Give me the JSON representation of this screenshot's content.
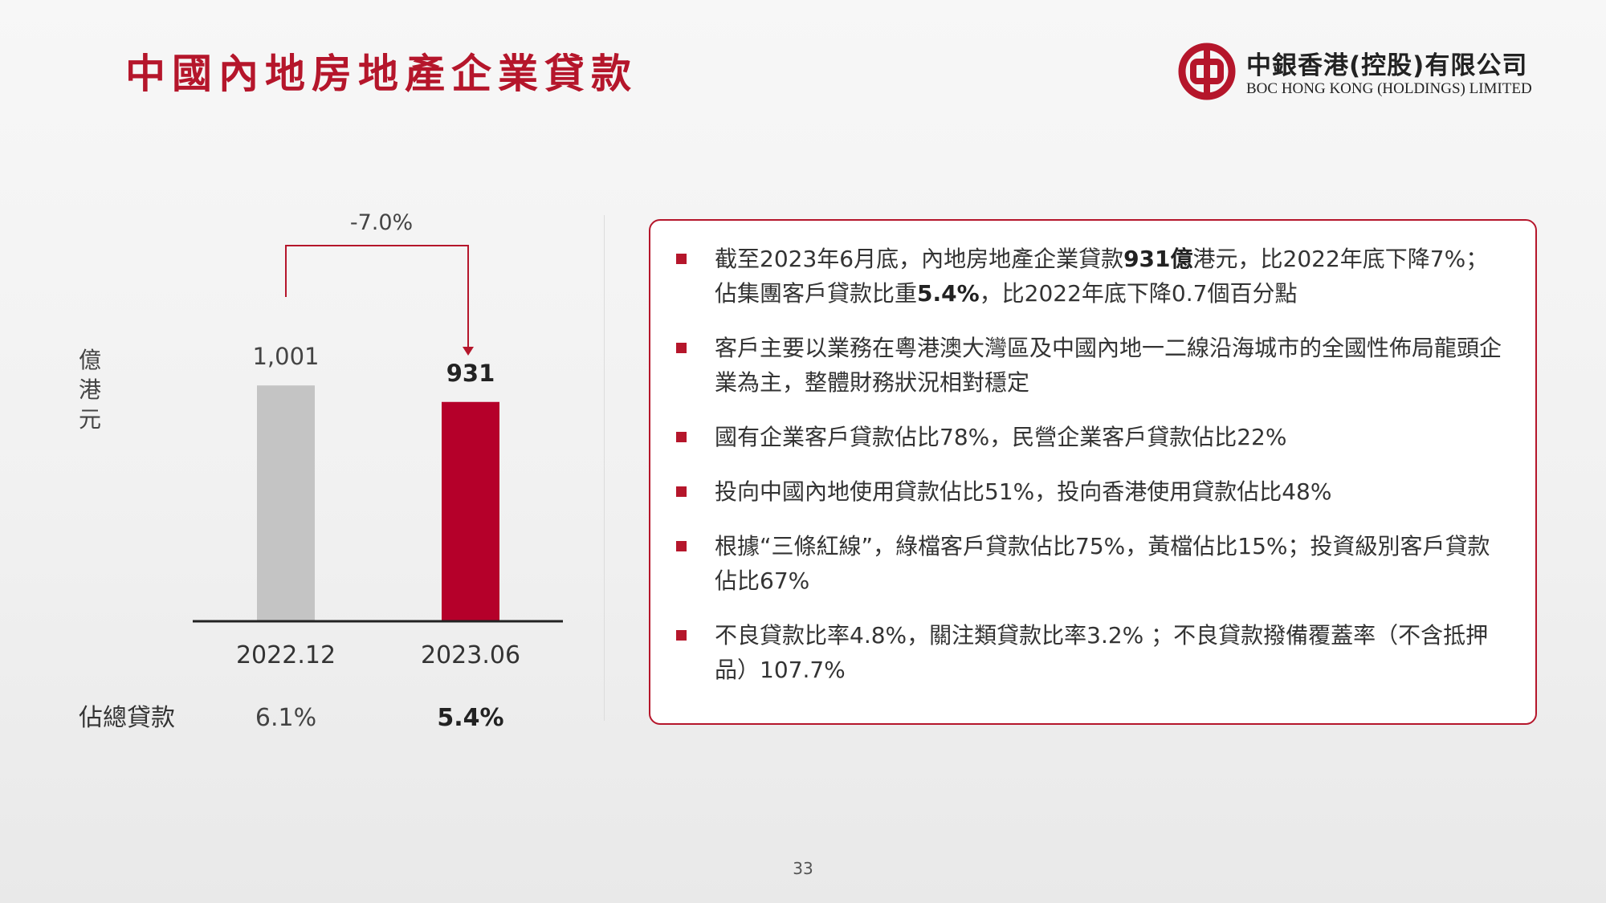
{
  "page": {
    "title": "中國內地房地產企業貸款",
    "page_number": "33"
  },
  "logo": {
    "name_cn": "中銀香港(控股)有限公司",
    "name_en": "BOC HONG KONG (HOLDINGS) LIMITED",
    "color": "#b5162b"
  },
  "colors": {
    "accent": "#b5162b",
    "bar_prev": "#c4c4c4",
    "bar_curr": "#b5002a"
  },
  "chart_data": {
    "type": "bar",
    "ylabel": "億港元",
    "categories": [
      "2022.12",
      "2023.06"
    ],
    "values": [
      1001,
      931
    ],
    "value_labels": [
      "1,001",
      "931"
    ],
    "colors": [
      "#c4c4c4",
      "#b5002a"
    ],
    "change_label": "-7.0%",
    "share_row": {
      "label": "佔總貸款",
      "values": [
        "6.1%",
        "5.4%"
      ]
    }
  },
  "bullets": [
    {
      "parts": [
        {
          "text": "截至2023年6月底，內地房地產企業貸款"
        },
        {
          "text": "931億",
          "bold": true
        },
        {
          "text": "港元，比2022年底下降7%；佔集團客戶貸款比重"
        },
        {
          "text": "5.4%",
          "bold": true
        },
        {
          "text": "，比2022年底下降0.7個百分點"
        }
      ]
    },
    {
      "parts": [
        {
          "text": "客戶主要以業務在粵港澳大灣區及中國內地一二線沿海城市的全國性佈局龍頭企業為主，整體財務狀況相對穩定"
        }
      ]
    },
    {
      "parts": [
        {
          "text": "國有企業客戶貸款佔比78%，民營企業客戶貸款佔比22%"
        }
      ]
    },
    {
      "parts": [
        {
          "text": "投向中國內地使用貸款佔比51%，投向香港使用貸款佔比48%"
        }
      ]
    },
    {
      "parts": [
        {
          "text": "根據“三條紅線”，綠檔客戶貸款佔比75%，黃檔佔比15%；投資級別客戶貸款佔比67%"
        }
      ]
    },
    {
      "parts": [
        {
          "text": "不良貸款比率4.8%，關注類貸款比率3.2% ；不良貸款撥備覆蓋率（不含抵押品）107.7%"
        }
      ]
    }
  ]
}
